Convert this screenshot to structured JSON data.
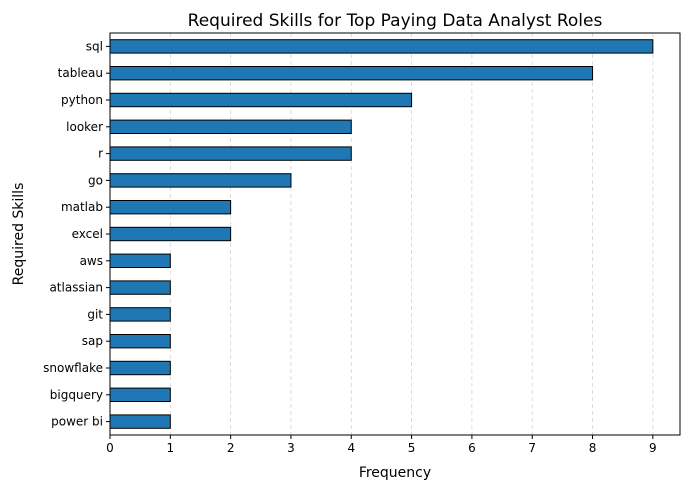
{
  "chart_data": {
    "type": "bar",
    "orientation": "horizontal",
    "title": "Required Skills for Top Paying Data Analyst Roles",
    "xlabel": "Frequency",
    "ylabel": "Required Skills",
    "categories": [
      "sql",
      "tableau",
      "python",
      "looker",
      "r",
      "go",
      "matlab",
      "excel",
      "aws",
      "atlassian",
      "git",
      "sap",
      "snowflake",
      "bigquery",
      "power bi"
    ],
    "values": [
      9,
      8,
      5,
      4,
      4,
      3,
      2,
      2,
      1,
      1,
      1,
      1,
      1,
      1,
      1
    ],
    "xlim": [
      0,
      9.45
    ],
    "xticks": [
      0,
      1,
      2,
      3,
      4,
      5,
      6,
      7,
      8,
      9
    ],
    "grid": "x, dashed",
    "bar_color": "#1f77b4",
    "bar_edge_color": "#000000",
    "grid_color": "#d3d3d3"
  }
}
